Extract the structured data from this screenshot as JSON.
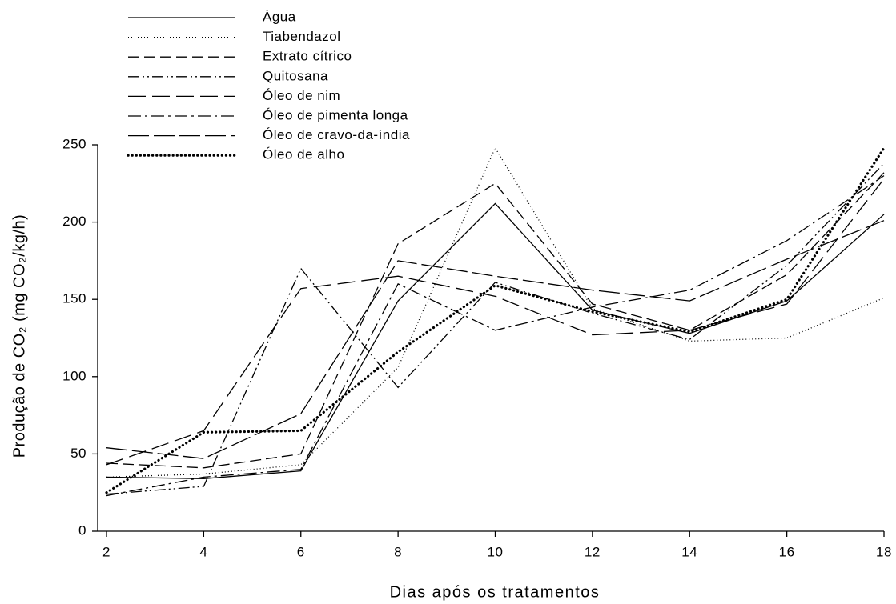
{
  "chart_data": {
    "type": "line",
    "x_label": "Dias após os tratamentos",
    "y_label": "Produção de CO₂ (mg CO₂/kg/h)",
    "x": [
      2,
      4,
      6,
      8,
      10,
      12,
      14,
      16,
      18
    ],
    "xlim": [
      2,
      18
    ],
    "xticks": [
      2,
      4,
      6,
      8,
      10,
      12,
      14,
      16,
      18
    ],
    "ylim": [
      0,
      250
    ],
    "yticks": [
      0,
      50,
      100,
      150,
      200,
      250
    ],
    "legend": "upper left",
    "series": [
      {
        "name": "Água",
        "color": "#000000",
        "dash": "none",
        "values": [
          35,
          34,
          39,
          149,
          212,
          143,
          128,
          149,
          205
        ]
      },
      {
        "name": "Tiabendazol",
        "color": "#000000",
        "dash": "1 3",
        "values": [
          35,
          37,
          43,
          106,
          248,
          144,
          123,
          125,
          151
        ]
      },
      {
        "name": "Extrato cítrico",
        "color": "#000000",
        "dash": "14 6",
        "values": [
          44,
          41,
          50,
          186,
          225,
          147,
          130,
          166,
          232
        ]
      },
      {
        "name": "Quitosana",
        "color": "#000000",
        "dash": "14 4 2 4 2 4",
        "values": [
          24,
          29,
          170,
          93,
          161,
          141,
          124,
          172,
          238
        ]
      },
      {
        "name": "Óleo de nim",
        "color": "#000000",
        "dash": "22 8",
        "values": [
          43,
          65,
          157,
          165,
          152,
          127,
          130,
          147,
          228
        ]
      },
      {
        "name": "Óleo de pimenta longa",
        "color": "#000000",
        "dash": "16 5 3 5",
        "values": [
          23,
          35,
          40,
          160,
          130,
          145,
          156,
          188,
          230
        ]
      },
      {
        "name": "Óleo de cravo-da-índia",
        "color": "#000000",
        "dash": "26 6",
        "values": [
          54,
          47,
          76,
          175,
          165,
          156,
          149,
          176,
          201
        ]
      },
      {
        "name": "Óleo de alho",
        "color": "#000000",
        "dash": "0.1 5",
        "width": 3.2,
        "values": [
          25,
          64,
          65,
          116,
          159,
          142,
          129,
          150,
          248
        ]
      }
    ]
  }
}
